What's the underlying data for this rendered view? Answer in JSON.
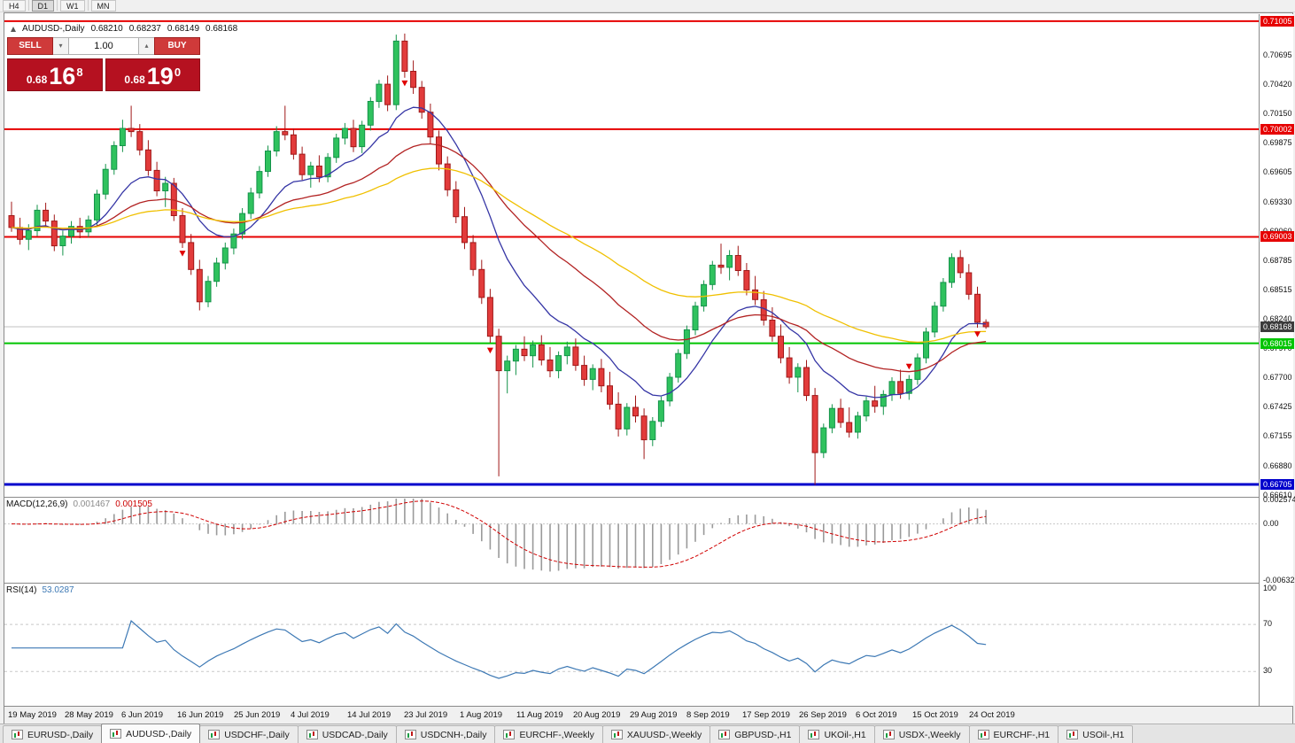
{
  "toolbar": {
    "timeframes": [
      "H4",
      "D1",
      "W1",
      "MN"
    ],
    "active": "D1"
  },
  "window": {
    "symbol": "AUDUSD-,Daily",
    "ohlc": {
      "o": "0.68210",
      "h": "0.68237",
      "l": "0.68149",
      "c": "0.68168"
    }
  },
  "trade_panel": {
    "sell_label": "SELL",
    "buy_label": "BUY",
    "volume": "1.00",
    "sell": {
      "prefix": "0.68",
      "big": "16",
      "sup": "8"
    },
    "buy": {
      "prefix": "0.68",
      "big": "19",
      "sup": "0"
    },
    "colors": {
      "button": "#cf3a3a",
      "box": "#b51120"
    }
  },
  "chart_data": {
    "type": "candlestick",
    "symbol": "AUDUSD-",
    "timeframe": "Daily",
    "ylim": [
      0.6659,
      0.7107
    ],
    "y_ticks": [
      "0.70985",
      "0.70695",
      "0.70420",
      "0.70150",
      "0.69875",
      "0.69605",
      "0.69330",
      "0.69060",
      "0.68785",
      "0.68515",
      "0.68240",
      "0.67970",
      "0.67700",
      "0.67425",
      "0.67155",
      "0.66880",
      "0.66610"
    ],
    "x_labels": [
      "19 May 2019",
      "28 May 2019",
      "6 Jun 2019",
      "16 Jun 2019",
      "25 Jun 2019",
      "4 Jul 2019",
      "14 Jul 2019",
      "23 Jul 2019",
      "1 Aug 2019",
      "11 Aug 2019",
      "20 Aug 2019",
      "29 Aug 2019",
      "8 Sep 2019",
      "17 Sep 2019",
      "26 Sep 2019",
      "6 Oct 2019",
      "15 Oct 2019",
      "24 Oct 2019"
    ],
    "levels": [
      {
        "value": 0.71005,
        "label": "0.71005",
        "color": "#e60000",
        "width": 2
      },
      {
        "value": 0.70002,
        "label": "0.70002",
        "color": "#e60000",
        "width": 2
      },
      {
        "value": 0.69003,
        "label": "0.69003",
        "color": "#e60000",
        "width": 2
      },
      {
        "value": 0.68015,
        "label": "0.68015",
        "color": "#00c400",
        "width": 2
      },
      {
        "value": 0.66705,
        "label": "0.66705",
        "color": "#0000cc",
        "width": 3
      }
    ],
    "current_price": {
      "value": 0.68168,
      "label": "0.68168",
      "badge_color": "#3c3c3c",
      "line_color": "#c0c0c0"
    },
    "colors": {
      "up": "#2fc25e",
      "up_border": "#14934a",
      "down": "#e23b3b",
      "down_border": "#a01818"
    },
    "moving_averages": [
      {
        "period": 12,
        "color": "#3535a5"
      },
      {
        "period": 30,
        "color": "#b22222"
      },
      {
        "period": 55,
        "color": "#f0c000"
      }
    ],
    "markers": [
      {
        "bar": 20,
        "price": 0.6885
      },
      {
        "bar": 46,
        "price": 0.7043
      },
      {
        "bar": 56,
        "price": 0.6795
      },
      {
        "bar": 105,
        "price": 0.678
      },
      {
        "bar": 113,
        "price": 0.681
      }
    ],
    "candles": [
      [
        0.692,
        0.6933,
        0.6905,
        0.6909
      ],
      [
        0.6909,
        0.6918,
        0.6893,
        0.6898
      ],
      [
        0.6898,
        0.6912,
        0.6888,
        0.6906
      ],
      [
        0.6906,
        0.693,
        0.6901,
        0.6925
      ],
      [
        0.6925,
        0.6932,
        0.691,
        0.6915
      ],
      [
        0.6915,
        0.6921,
        0.6887,
        0.6892
      ],
      [
        0.6892,
        0.6906,
        0.6883,
        0.6901
      ],
      [
        0.6901,
        0.6915,
        0.6894,
        0.691
      ],
      [
        0.691,
        0.6918,
        0.6899,
        0.6905
      ],
      [
        0.6905,
        0.692,
        0.69,
        0.6916
      ],
      [
        0.6916,
        0.6944,
        0.6911,
        0.694
      ],
      [
        0.694,
        0.6968,
        0.6935,
        0.6963
      ],
      [
        0.6963,
        0.6989,
        0.6958,
        0.6985
      ],
      [
        0.6985,
        0.7009,
        0.6979,
        0.7001
      ],
      [
        0.7001,
        0.7022,
        0.6993,
        0.6998
      ],
      [
        0.6998,
        0.7005,
        0.6976,
        0.6981
      ],
      [
        0.6981,
        0.699,
        0.6957,
        0.6962
      ],
      [
        0.6962,
        0.697,
        0.6938,
        0.6943
      ],
      [
        0.6943,
        0.6956,
        0.6928,
        0.695
      ],
      [
        0.695,
        0.6955,
        0.6915,
        0.692
      ],
      [
        0.692,
        0.6927,
        0.689,
        0.6895
      ],
      [
        0.6895,
        0.6903,
        0.6865,
        0.687
      ],
      [
        0.687,
        0.6879,
        0.6832,
        0.684
      ],
      [
        0.684,
        0.6864,
        0.6835,
        0.6859
      ],
      [
        0.6859,
        0.6881,
        0.6854,
        0.6876
      ],
      [
        0.6876,
        0.6895,
        0.687,
        0.689
      ],
      [
        0.689,
        0.6908,
        0.6884,
        0.6903
      ],
      [
        0.6903,
        0.6927,
        0.6898,
        0.6922
      ],
      [
        0.6922,
        0.6946,
        0.6917,
        0.6941
      ],
      [
        0.6941,
        0.6966,
        0.6936,
        0.6961
      ],
      [
        0.6961,
        0.6985,
        0.6956,
        0.698
      ],
      [
        0.698,
        0.7003,
        0.6975,
        0.6998
      ],
      [
        0.6998,
        0.7022,
        0.699,
        0.6995
      ],
      [
        0.6995,
        0.7001,
        0.6972,
        0.6977
      ],
      [
        0.6977,
        0.6984,
        0.6953,
        0.6958
      ],
      [
        0.6958,
        0.697,
        0.6946,
        0.6966
      ],
      [
        0.6966,
        0.6976,
        0.6951,
        0.6956
      ],
      [
        0.6956,
        0.6978,
        0.6951,
        0.6974
      ],
      [
        0.6974,
        0.6996,
        0.6969,
        0.6992
      ],
      [
        0.6992,
        0.7006,
        0.6986,
        0.7001
      ],
      [
        0.7001,
        0.7009,
        0.6979,
        0.6984
      ],
      [
        0.6984,
        0.7008,
        0.6978,
        0.7004
      ],
      [
        0.7004,
        0.703,
        0.6999,
        0.7026
      ],
      [
        0.7026,
        0.7046,
        0.702,
        0.7042
      ],
      [
        0.7042,
        0.705,
        0.7017,
        0.7023
      ],
      [
        0.7023,
        0.7088,
        0.7018,
        0.7082
      ],
      [
        0.7082,
        0.7089,
        0.7048,
        0.7054
      ],
      [
        0.7054,
        0.7064,
        0.7033,
        0.7039
      ],
      [
        0.7039,
        0.7045,
        0.701,
        0.7016
      ],
      [
        0.7016,
        0.7024,
        0.6987,
        0.6993
      ],
      [
        0.6993,
        0.6999,
        0.6962,
        0.6968
      ],
      [
        0.6968,
        0.6975,
        0.6938,
        0.6944
      ],
      [
        0.6944,
        0.6952,
        0.6913,
        0.6919
      ],
      [
        0.6919,
        0.6928,
        0.6889,
        0.6895
      ],
      [
        0.6895,
        0.6902,
        0.6864,
        0.687
      ],
      [
        0.687,
        0.6879,
        0.6838,
        0.6844
      ],
      [
        0.6844,
        0.6852,
        0.6802,
        0.6808
      ],
      [
        0.6808,
        0.6815,
        0.6678,
        0.6776
      ],
      [
        0.6776,
        0.679,
        0.6755,
        0.6785
      ],
      [
        0.6785,
        0.68,
        0.6772,
        0.6796
      ],
      [
        0.6796,
        0.6808,
        0.6785,
        0.679
      ],
      [
        0.679,
        0.6804,
        0.6779,
        0.68
      ],
      [
        0.68,
        0.6809,
        0.6781,
        0.6786
      ],
      [
        0.6786,
        0.6798,
        0.677,
        0.6776
      ],
      [
        0.6776,
        0.6794,
        0.6769,
        0.679
      ],
      [
        0.679,
        0.6803,
        0.6782,
        0.6798
      ],
      [
        0.6798,
        0.6806,
        0.6776,
        0.6781
      ],
      [
        0.6781,
        0.679,
        0.6762,
        0.6768
      ],
      [
        0.6768,
        0.6782,
        0.6758,
        0.6778
      ],
      [
        0.6778,
        0.6787,
        0.6756,
        0.6762
      ],
      [
        0.6762,
        0.6775,
        0.674,
        0.6745
      ],
      [
        0.6745,
        0.6756,
        0.6715,
        0.6722
      ],
      [
        0.6722,
        0.6746,
        0.6716,
        0.6742
      ],
      [
        0.6742,
        0.6753,
        0.6728,
        0.6734
      ],
      [
        0.6734,
        0.6741,
        0.6694,
        0.6712
      ],
      [
        0.6712,
        0.6733,
        0.6706,
        0.6729
      ],
      [
        0.6729,
        0.6752,
        0.6724,
        0.6748
      ],
      [
        0.6748,
        0.6774,
        0.6743,
        0.677
      ],
      [
        0.677,
        0.6796,
        0.6765,
        0.6792
      ],
      [
        0.6792,
        0.6818,
        0.6787,
        0.6814
      ],
      [
        0.6814,
        0.684,
        0.6809,
        0.6836
      ],
      [
        0.6836,
        0.686,
        0.6831,
        0.6856
      ],
      [
        0.6856,
        0.6878,
        0.6851,
        0.6874
      ],
      [
        0.6874,
        0.6894,
        0.6866,
        0.6872
      ],
      [
        0.6872,
        0.6888,
        0.686,
        0.6883
      ],
      [
        0.6883,
        0.6892,
        0.6864,
        0.6869
      ],
      [
        0.6869,
        0.6876,
        0.6846,
        0.6851
      ],
      [
        0.6851,
        0.6864,
        0.6837,
        0.6842
      ],
      [
        0.6842,
        0.685,
        0.6818,
        0.6823
      ],
      [
        0.6823,
        0.6835,
        0.6803,
        0.6808
      ],
      [
        0.6808,
        0.6819,
        0.6783,
        0.6788
      ],
      [
        0.6788,
        0.6798,
        0.6764,
        0.677
      ],
      [
        0.677,
        0.6783,
        0.6756,
        0.6779
      ],
      [
        0.6779,
        0.6786,
        0.6748,
        0.6753
      ],
      [
        0.6753,
        0.676,
        0.667,
        0.67
      ],
      [
        0.67,
        0.6727,
        0.6695,
        0.6723
      ],
      [
        0.6723,
        0.6745,
        0.6718,
        0.6741
      ],
      [
        0.6741,
        0.675,
        0.6723,
        0.6728
      ],
      [
        0.6728,
        0.6742,
        0.6714,
        0.6719
      ],
      [
        0.6719,
        0.6738,
        0.6713,
        0.6734
      ],
      [
        0.6734,
        0.6752,
        0.6729,
        0.6748
      ],
      [
        0.6748,
        0.6762,
        0.6737,
        0.6743
      ],
      [
        0.6743,
        0.6758,
        0.6735,
        0.6754
      ],
      [
        0.6754,
        0.677,
        0.6748,
        0.6766
      ],
      [
        0.6766,
        0.6777,
        0.675,
        0.6755
      ],
      [
        0.6755,
        0.6772,
        0.6749,
        0.6768
      ],
      [
        0.6768,
        0.6792,
        0.6763,
        0.6788
      ],
      [
        0.6788,
        0.6816,
        0.6783,
        0.6812
      ],
      [
        0.6812,
        0.684,
        0.6807,
        0.6836
      ],
      [
        0.6836,
        0.6862,
        0.6831,
        0.6858
      ],
      [
        0.6858,
        0.6885,
        0.6853,
        0.6881
      ],
      [
        0.6881,
        0.6888,
        0.6862,
        0.6867
      ],
      [
        0.6867,
        0.6875,
        0.6842,
        0.6847
      ],
      [
        0.6847,
        0.6854,
        0.6816,
        0.6821
      ],
      [
        0.6821,
        0.68237,
        0.68149,
        0.68168
      ]
    ]
  },
  "macd": {
    "name": "MACD(12,26,9)",
    "main_value": "0.001467",
    "signal_value": "0.001505",
    "fast": 12,
    "slow": 26,
    "signal": 9,
    "range": [
      -0.0066,
      0.0028
    ],
    "histogram_color": "#9a9a9a",
    "signal_color": "#d00000",
    "axis": [
      {
        "label": "0.002574",
        "value": 0.002574
      },
      {
        "label": "0.00",
        "value": 0
      },
      {
        "label": "-0.006326",
        "value": -0.006326
      }
    ]
  },
  "rsi": {
    "name": "RSI(14)",
    "value": "53.0287",
    "period": 14,
    "levels": [
      70,
      30
    ],
    "range": [
      0,
      104
    ],
    "line_color": "#3c78b4",
    "level_color": "#c8c8c8",
    "axis": [
      {
        "label": "100",
        "value": 100
      },
      {
        "label": "70",
        "value": 70
      },
      {
        "label": "30",
        "value": 30
      }
    ]
  },
  "tabs": [
    {
      "label": "EURUSD-,Daily"
    },
    {
      "label": "AUDUSD-,Daily",
      "active": true
    },
    {
      "label": "USDCHF-,Daily"
    },
    {
      "label": "USDCAD-,Daily"
    },
    {
      "label": "USDCNH-,Daily"
    },
    {
      "label": "EURCHF-,Weekly"
    },
    {
      "label": "XAUUSD-,Weekly"
    },
    {
      "label": "GBPUSD-,H1"
    },
    {
      "label": "UKOil-,H1"
    },
    {
      "label": "USDX-,Weekly"
    },
    {
      "label": "EURCHF-,H1"
    },
    {
      "label": "USOil-,H1"
    }
  ]
}
